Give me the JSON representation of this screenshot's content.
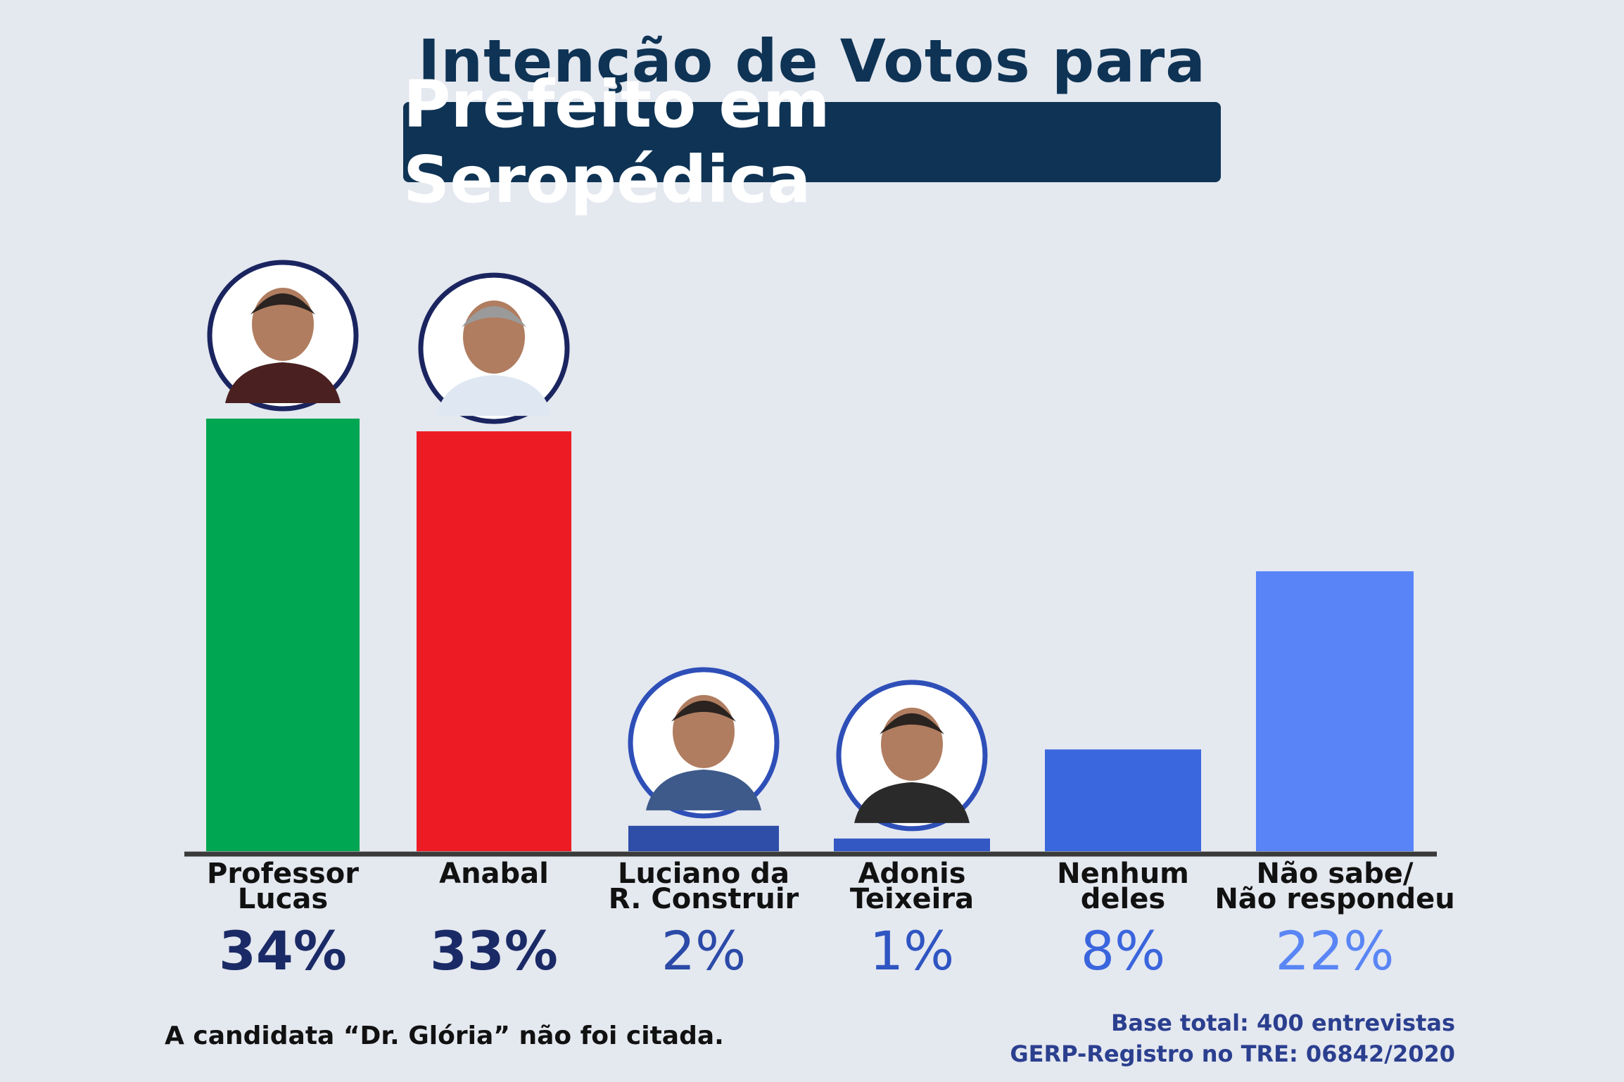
{
  "title": {
    "line1": "Intenção de Votos para",
    "line2": "Prefeito em Seropédica"
  },
  "chart_data": {
    "type": "bar",
    "title": "Intenção de Votos para Prefeito em Seropédica",
    "categories": [
      [
        "Professor",
        "Lucas"
      ],
      [
        "Anabal"
      ],
      [
        "Luciano da",
        "R. Construir"
      ],
      [
        "Adonis",
        "Teixeira"
      ],
      [
        "Nenhum",
        "deles"
      ],
      [
        "Não sabe/",
        "Não respondeu"
      ]
    ],
    "values": [
      34,
      33,
      2,
      1,
      8,
      22
    ],
    "value_labels": [
      "34%",
      "33%",
      "2%",
      "1%",
      "8%",
      "22%"
    ],
    "bar_colors": [
      "#00a651",
      "#ed1c24",
      "#2e4ea8",
      "#3358c4",
      "#3a67dd",
      "#5884f8"
    ],
    "label_colors": [
      "#1a2a66",
      "#1a2a66",
      "#2b4aa8",
      "#2f55c2",
      "#3a65dd",
      "#5a86f5"
    ],
    "photos": [
      true,
      true,
      true,
      true,
      false,
      false
    ],
    "ylim": [
      0,
      34
    ],
    "xlabel": "",
    "ylabel": ""
  },
  "footnote": "A candidata “Dr. Glória” não foi citada.",
  "base": {
    "line1": "Base total: 400 entrevistas",
    "line2": "GERP-Registro no TRE: 06842/2020"
  }
}
